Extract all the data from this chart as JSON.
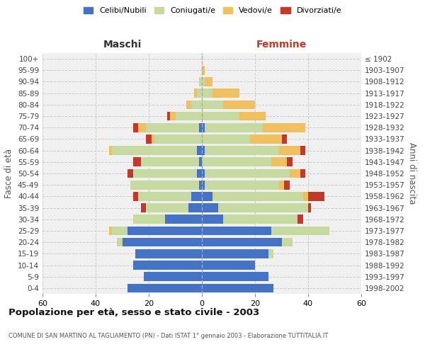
{
  "age_groups": [
    "0-4",
    "5-9",
    "10-14",
    "15-19",
    "20-24",
    "25-29",
    "30-34",
    "35-39",
    "40-44",
    "45-49",
    "50-54",
    "55-59",
    "60-64",
    "65-69",
    "70-74",
    "75-79",
    "80-84",
    "85-89",
    "90-94",
    "95-99",
    "100+"
  ],
  "birth_years": [
    "1998-2002",
    "1993-1997",
    "1988-1992",
    "1983-1987",
    "1978-1982",
    "1973-1977",
    "1968-1972",
    "1963-1967",
    "1958-1962",
    "1953-1957",
    "1948-1952",
    "1943-1947",
    "1938-1942",
    "1933-1937",
    "1928-1932",
    "1923-1927",
    "1918-1922",
    "1913-1917",
    "1908-1912",
    "1903-1907",
    "≤ 1902"
  ],
  "males": {
    "celibi": [
      28,
      22,
      26,
      25,
      30,
      28,
      14,
      5,
      4,
      1,
      2,
      1,
      2,
      0,
      1,
      0,
      0,
      0,
      0,
      0,
      0
    ],
    "coniugati": [
      0,
      0,
      0,
      0,
      2,
      6,
      12,
      16,
      20,
      26,
      24,
      22,
      32,
      18,
      20,
      10,
      4,
      2,
      1,
      0,
      0
    ],
    "vedovi": [
      0,
      0,
      0,
      0,
      0,
      1,
      0,
      0,
      0,
      0,
      0,
      0,
      1,
      1,
      3,
      2,
      2,
      1,
      0,
      0,
      0
    ],
    "divorziati": [
      0,
      0,
      0,
      0,
      0,
      0,
      0,
      2,
      2,
      0,
      2,
      3,
      0,
      2,
      2,
      1,
      0,
      0,
      0,
      0,
      0
    ]
  },
  "females": {
    "nubili": [
      27,
      25,
      20,
      25,
      30,
      26,
      8,
      6,
      4,
      1,
      1,
      0,
      1,
      0,
      1,
      0,
      0,
      0,
      0,
      0,
      0
    ],
    "coniugate": [
      0,
      0,
      0,
      2,
      4,
      22,
      28,
      34,
      34,
      28,
      32,
      26,
      28,
      18,
      22,
      14,
      8,
      4,
      1,
      0,
      0
    ],
    "vedove": [
      0,
      0,
      0,
      0,
      0,
      0,
      0,
      0,
      2,
      2,
      4,
      6,
      8,
      12,
      16,
      10,
      12,
      10,
      3,
      1,
      0
    ],
    "divorziate": [
      0,
      0,
      0,
      0,
      0,
      0,
      2,
      1,
      6,
      2,
      2,
      2,
      2,
      2,
      0,
      0,
      0,
      0,
      0,
      0,
      0
    ]
  },
  "colors": {
    "celibi": "#4472c4",
    "coniugati": "#c5d9a0",
    "vedovi": "#f0c060",
    "divorziati": "#c0392b"
  },
  "title": "Popolazione per età, sesso e stato civile - 2003",
  "subtitle": "COMUNE DI SAN MARTINO AL TAGLIAMENTO (PN) - Dati ISTAT 1° gennaio 2003 - Elaborazione TUTTITALIA.IT",
  "xlabel_left": "Maschi",
  "xlabel_right": "Femmine",
  "ylabel_left": "Fasce di età",
  "ylabel_right": "Anni di nascita",
  "xlim": 60,
  "bg_color": "#ffffff",
  "plot_bg": "#f0f0f0",
  "grid_color": "#cccccc",
  "legend_labels": [
    "Celibi/Nubili",
    "Coniugati/e",
    "Vedovi/e",
    "Divorziati/e"
  ]
}
